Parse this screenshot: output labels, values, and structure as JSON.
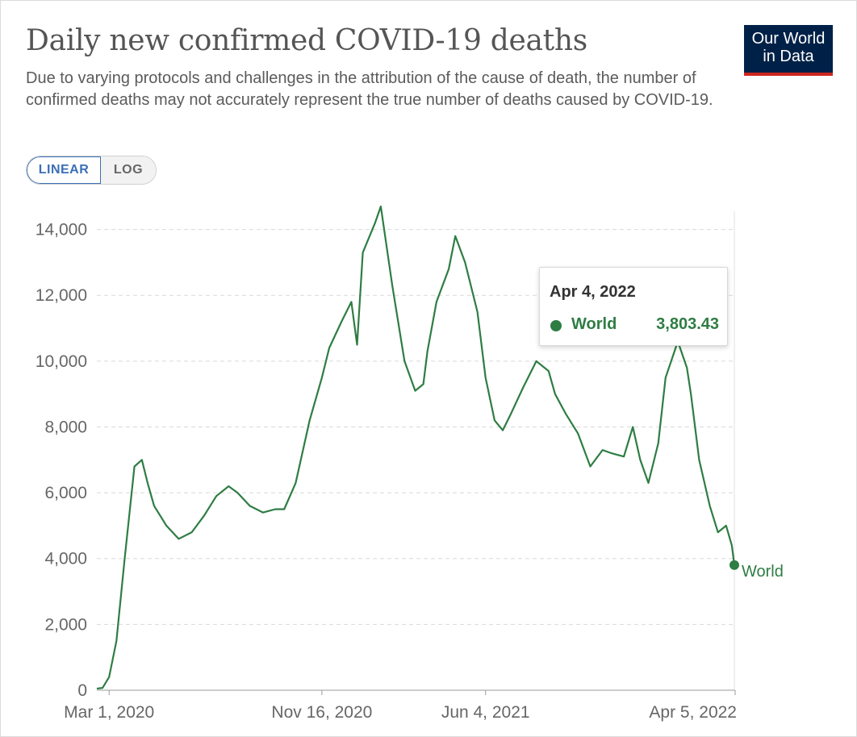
{
  "header": {
    "title": "Daily new confirmed COVID-19 deaths",
    "subtitle": "Due to varying protocols and challenges in the attribution of the cause of death, the number of confirmed deaths may not accurately represent the true number of deaths caused by COVID-19.",
    "logo_line1": "Our World",
    "logo_line2": "in Data"
  },
  "scale_toggle": {
    "linear_label": "LINEAR",
    "log_label": "LOG",
    "selected": "LINEAR"
  },
  "tooltip": {
    "date": "Apr 4, 2022",
    "series": "World",
    "value": "3,803.43"
  },
  "colors": {
    "series": "#2e7d43",
    "gridline": "#d9d9d9",
    "axis_text": "#666666",
    "logo_bg": "#002147",
    "logo_accent": "#ce261e",
    "toggle_active": "#3a6fb5"
  },
  "chart_data": {
    "type": "line",
    "title": "Daily new confirmed COVID-19 deaths",
    "xlabel": "",
    "ylabel": "",
    "ylim": [
      0,
      14000
    ],
    "y_ticks": [
      0,
      2000,
      4000,
      6000,
      8000,
      10000,
      12000,
      14000
    ],
    "y_tick_labels": [
      "0",
      "2,000",
      "4,000",
      "6,000",
      "8,000",
      "10,000",
      "12,000",
      "14,000"
    ],
    "x_ticks": [
      "2020-03-01",
      "2020-11-16",
      "2021-06-04",
      "2022-04-05"
    ],
    "x_tick_labels": [
      "Mar 1, 2020",
      "Nov 16, 2020",
      "Jun 4, 2021",
      "Apr 5, 2022"
    ],
    "x_range": [
      "2020-02-15",
      "2022-04-05"
    ],
    "grid": true,
    "end_label": "World",
    "series": [
      {
        "name": "World",
        "x": [
          "2020-02-15",
          "2020-02-22",
          "2020-03-01",
          "2020-03-10",
          "2020-03-20",
          "2020-04-01",
          "2020-04-10",
          "2020-04-17",
          "2020-04-25",
          "2020-05-10",
          "2020-05-25",
          "2020-06-10",
          "2020-06-25",
          "2020-07-10",
          "2020-07-25",
          "2020-08-05",
          "2020-08-20",
          "2020-09-05",
          "2020-09-20",
          "2020-10-01",
          "2020-10-15",
          "2020-11-01",
          "2020-11-16",
          "2020-11-25",
          "2020-12-10",
          "2020-12-22",
          "2020-12-29",
          "2021-01-05",
          "2021-01-20",
          "2021-01-27",
          "2021-02-10",
          "2021-02-25",
          "2021-03-10",
          "2021-03-20",
          "2021-03-25",
          "2021-04-05",
          "2021-04-20",
          "2021-04-28",
          "2021-05-10",
          "2021-05-25",
          "2021-06-04",
          "2021-06-15",
          "2021-06-25",
          "2021-07-05",
          "2021-07-20",
          "2021-08-05",
          "2021-08-20",
          "2021-08-28",
          "2021-09-10",
          "2021-09-25",
          "2021-10-10",
          "2021-10-25",
          "2021-11-05",
          "2021-11-20",
          "2021-12-01",
          "2021-12-10",
          "2021-12-20",
          "2022-01-01",
          "2022-01-10",
          "2022-01-25",
          "2022-02-05",
          "2022-02-10",
          "2022-02-20",
          "2022-03-05",
          "2022-03-15",
          "2022-03-25",
          "2022-04-01",
          "2022-04-04"
        ],
        "values": [
          50,
          70,
          400,
          1500,
          4000,
          6800,
          7000,
          6300,
          5600,
          5000,
          4600,
          4800,
          5300,
          5900,
          6200,
          6000,
          5600,
          5400,
          5500,
          5500,
          6300,
          8200,
          9500,
          10400,
          11200,
          11800,
          10500,
          13300,
          14200,
          14700,
          12300,
          10000,
          9100,
          9300,
          10300,
          11800,
          12800,
          13800,
          13000,
          11500,
          9500,
          8200,
          7900,
          8400,
          9200,
          10000,
          9700,
          9000,
          8400,
          7800,
          6800,
          7300,
          7200,
          7100,
          8000,
          7000,
          6300,
          7500,
          9500,
          10600,
          9800,
          9000,
          7000,
          5600,
          4800,
          5000,
          4400,
          3803.43
        ]
      }
    ]
  }
}
